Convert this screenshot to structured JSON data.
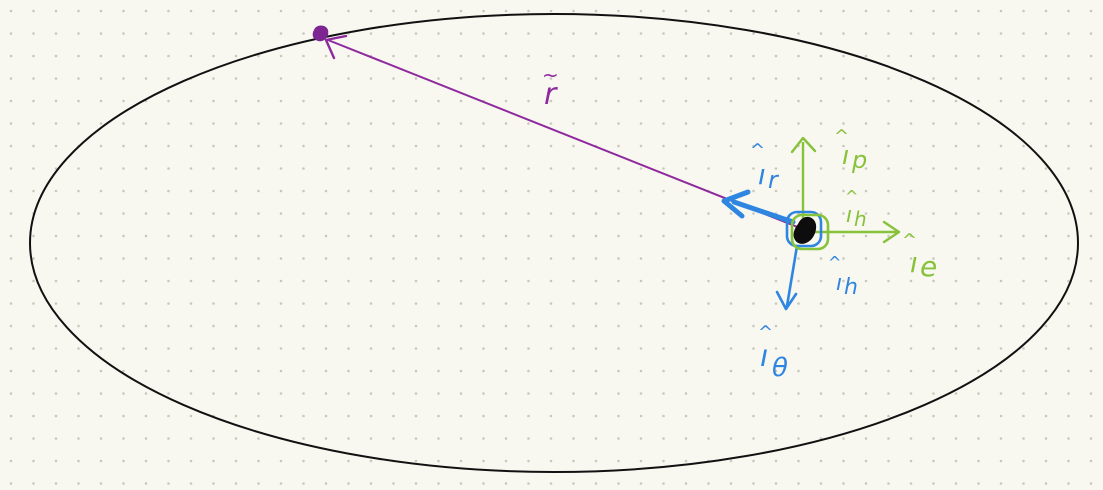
{
  "colors": {
    "background": "#f8f7f0",
    "dot_grid": "#c9c8bf",
    "orbit": "#111111",
    "position_vector": "#8e2a9e",
    "satellite": "#7d2590",
    "body": "#0d0d0d",
    "frame_blue": "#2f86e0",
    "frame_green": "#86c23a"
  },
  "labels": {
    "r_vector": "r",
    "r_vector_accent": "~",
    "i_r": "ı",
    "i_r_sub": "r",
    "i_p": "ı",
    "i_p_sub": "p",
    "i_h_green": "ı",
    "i_h_green_sub": "h",
    "i_e": "ı",
    "i_e_sub": "e",
    "i_h_blue": "ı",
    "i_h_blue_sub": "h",
    "i_theta": "ı",
    "i_theta_sub": "θ",
    "hat": "^"
  }
}
